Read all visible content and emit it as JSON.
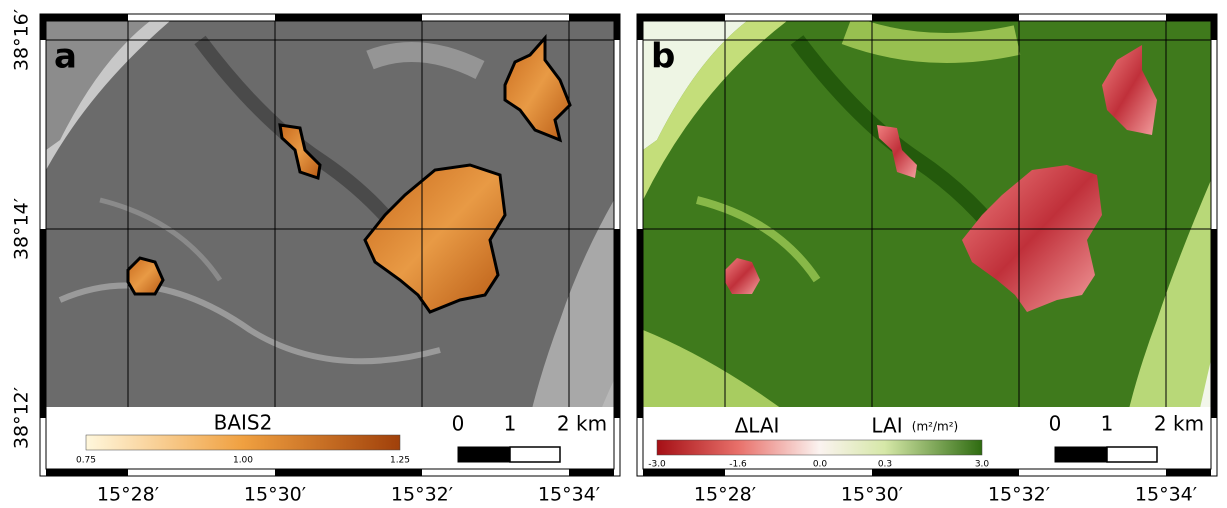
{
  "y_labels": [
    "38°16′",
    "38°14′",
    "38°12′"
  ],
  "panels": [
    {
      "label": "a",
      "x_labels": [
        "15°28′",
        "15°30′",
        "15°32′",
        "15°34′"
      ],
      "colorbar": {
        "titles": [
          "BAIS2"
        ],
        "ticks": [
          "0.75",
          "1.00",
          "1.25"
        ]
      },
      "scalebar": [
        "0",
        "1",
        "2 km"
      ]
    },
    {
      "label": "b",
      "x_labels": [
        "15°28′",
        "15°30′",
        "15°32′",
        "15°34′"
      ],
      "colorbar": {
        "titles": [
          "ΔLAI",
          "LAI",
          "(m²/m²)"
        ],
        "ticks": [
          "-3.0",
          "-1.6",
          "0.0",
          "0.3",
          "3.0"
        ]
      },
      "scalebar": [
        "0",
        "1",
        "2 km"
      ]
    }
  ]
}
